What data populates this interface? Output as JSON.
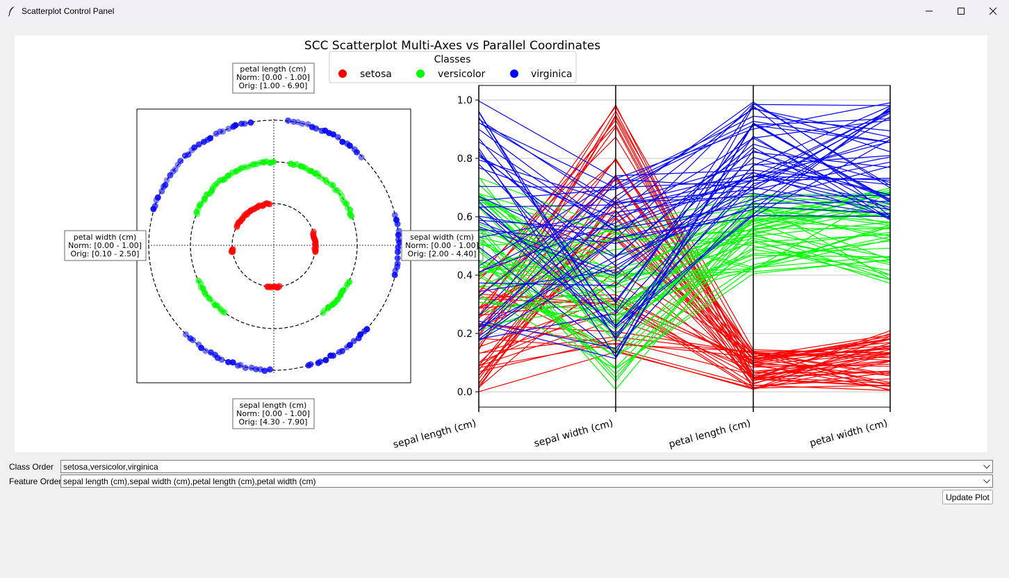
{
  "window": {
    "title": "Scatterplot Control Panel",
    "icon": "feather-icon",
    "buttons": [
      "minimize-icon",
      "maximize-icon",
      "close-icon"
    ]
  },
  "figure": {
    "title": "SCC Scatterplot Multi-Axes vs Parallel Coordinates",
    "legend": {
      "title": "Classes",
      "entries": [
        {
          "name": "setosa",
          "color": "#ff0000"
        },
        {
          "name": "versicolor",
          "color": "#00ff00"
        },
        {
          "name": "virginica",
          "color": "#0000ff"
        }
      ]
    },
    "scc_labels": {
      "top": [
        "petal length (cm)",
        "Norm: [0.00 - 1.00]",
        "Orig: [1.00 - 6.90]"
      ],
      "left": [
        "petal width (cm)",
        "Norm: [0.00 - 1.00]",
        "Orig: [0.10 - 2.50]"
      ],
      "right": [
        "sepal width (cm)",
        "Norm: [0.00 - 1.00]",
        "Orig: [2.00 - 4.40]"
      ],
      "bottom": [
        "sepal length (cm)",
        "Norm: [0.00 - 1.00]",
        "Orig: [4.30 - 7.90]"
      ]
    }
  },
  "chart_data": [
    {
      "type": "scatter",
      "subtype": "circular multi-axes",
      "rings": [
        "setosa",
        "versicolor",
        "virginica"
      ],
      "series": [
        {
          "name": "setosa",
          "color": "#ff0000",
          "arcs_deg": [
            [
              95,
              155
            ],
            [
              185,
              190
            ],
            [
              260,
              280
            ],
            [
              350,
              20
            ]
          ]
        },
        {
          "name": "versicolor",
          "color": "#00ff00",
          "arcs_deg": [
            [
              90,
              160
            ],
            [
              205,
              235
            ],
            [
              305,
              335
            ],
            [
              20,
              80
            ]
          ]
        },
        {
          "name": "virginica",
          "color": "#0000ff",
          "arcs_deg": [
            [
              100,
              165
            ],
            [
              225,
              270
            ],
            [
              285,
              320
            ],
            [
              345,
              15
            ],
            [
              45,
              85
            ]
          ]
        }
      ]
    },
    {
      "type": "line",
      "subtype": "parallel coordinates",
      "axes": [
        "sepal length (cm)",
        "sepal width (cm)",
        "petal length (cm)",
        "petal width (cm)"
      ],
      "ylim": [
        0.0,
        1.0
      ],
      "yticks": [
        "0.0",
        "0.2",
        "0.4",
        "0.6",
        "0.8",
        "1.0"
      ],
      "grid": true,
      "series": [
        {
          "name": "setosa",
          "color": "#ff0000",
          "ranges": [
            [
              0.0,
              0.42
            ],
            [
              0.12,
              1.0
            ],
            [
              0.0,
              0.15
            ],
            [
              0.0,
              0.21
            ]
          ]
        },
        {
          "name": "versicolor",
          "color": "#00ff00",
          "ranges": [
            [
              0.17,
              0.75
            ],
            [
              0.0,
              0.58
            ],
            [
              0.39,
              0.69
            ],
            [
              0.37,
              0.71
            ]
          ]
        },
        {
          "name": "virginica",
          "color": "#0000ff",
          "ranges": [
            [
              0.17,
              1.0
            ],
            [
              0.08,
              0.75
            ],
            [
              0.59,
              1.0
            ],
            [
              0.58,
              1.0
            ]
          ]
        }
      ]
    }
  ],
  "controls": {
    "class_order_label": "Class Order",
    "class_order_value": "setosa,versicolor,virginica",
    "feature_order_label": "Feature Order",
    "feature_order_value": "sepal length (cm),sepal width (cm),petal length (cm),petal width (cm)",
    "update_button": "Update Plot"
  }
}
